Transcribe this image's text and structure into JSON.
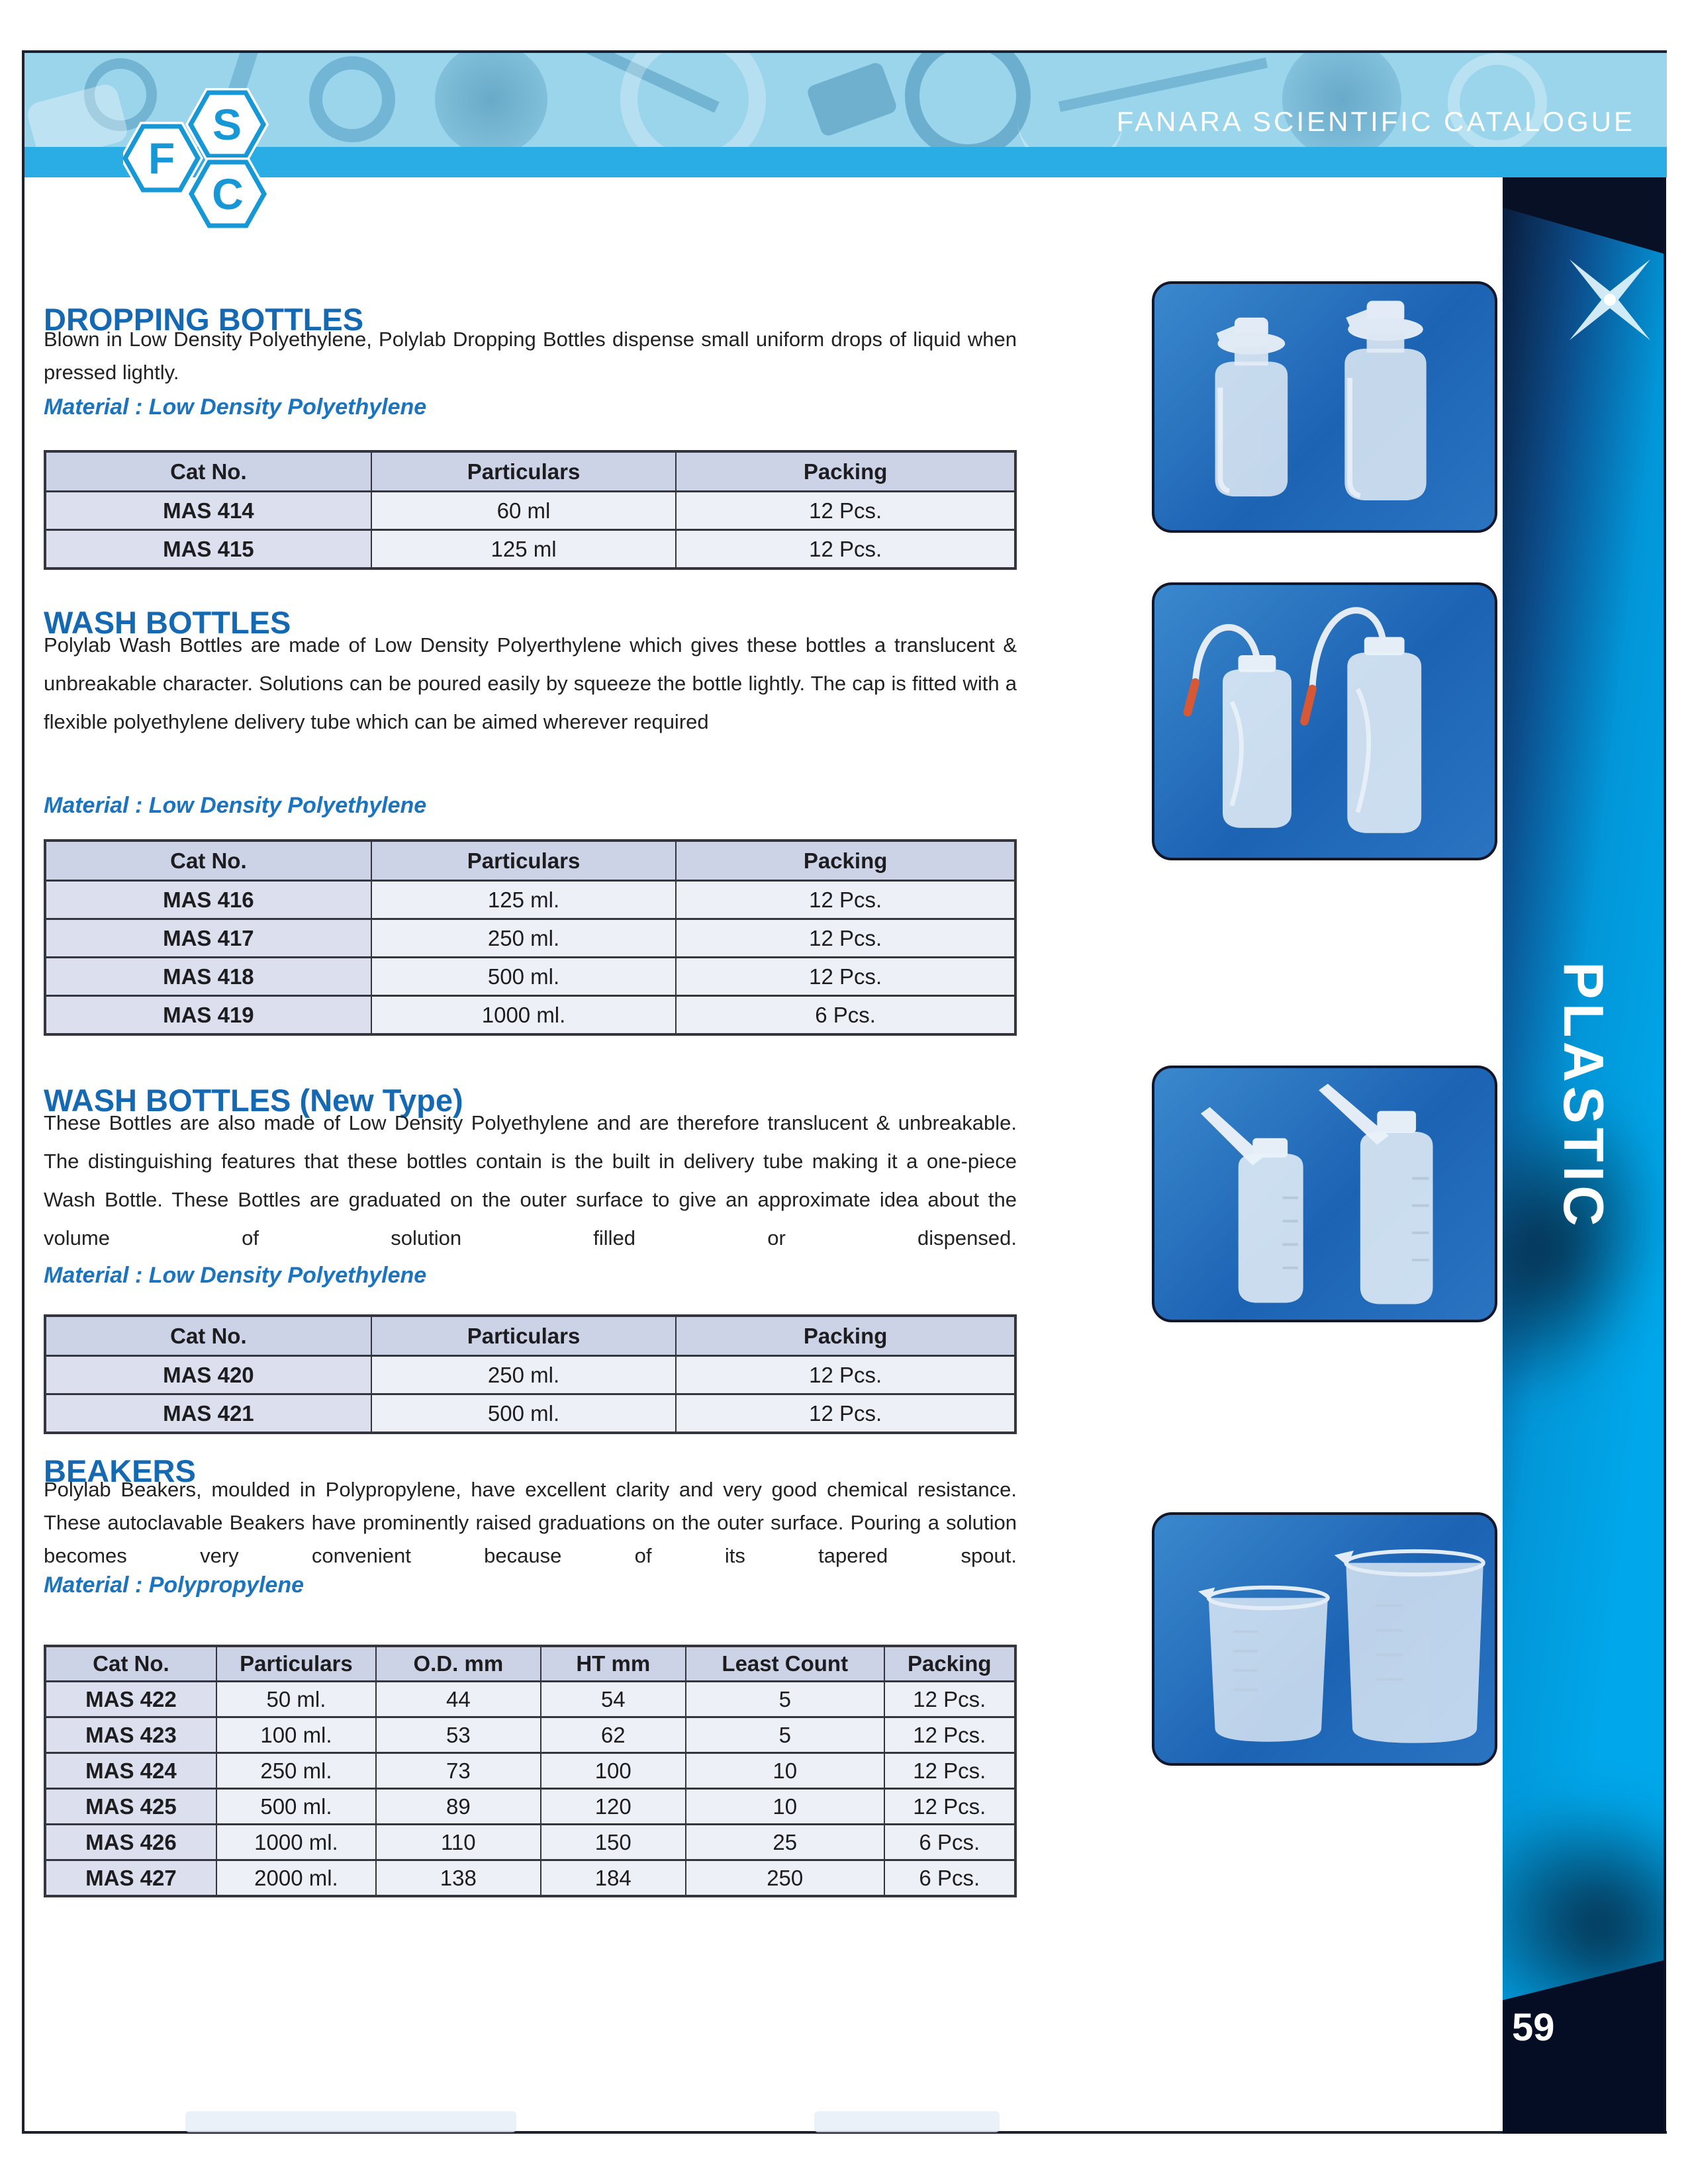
{
  "header": {
    "title": "FANARA SCIENTIFIC CATALOGUE"
  },
  "logo": {
    "letters": [
      "S",
      "F",
      "C"
    ]
  },
  "sidebar": {
    "label": "PLASTIC",
    "page_number": "59"
  },
  "colors": {
    "banner_light_blue": "#9ad5ec",
    "banner_stripe_blue": "#2aace4",
    "section_title_blue": "#1568b2",
    "material_blue": "#1a74c0",
    "table_header_bg": "#ccd3e6",
    "table_catno_bg": "#dbdfee",
    "table_cell_bg": "#eef0f8",
    "sidebar_navy": "#081026",
    "sidebar_blue": "#00a7ea",
    "photo_box_blue": "#1c63b4"
  },
  "images": [
    "dropping-bottles-photo",
    "wash-bottles-photo",
    "wash-bottles-new-type-photo",
    "beakers-photo"
  ],
  "sections": [
    {
      "title": "DROPPING BOTTLES",
      "description": "Blown in Low Density Polyethylene, Polylab Dropping Bottles dispense small uniform drops of liquid when pressed lightly.",
      "material": "Material : Low Density Polyethylene",
      "table": {
        "headers": [
          "Cat No.",
          "Particulars",
          "Packing"
        ],
        "rows": [
          [
            "MAS 414",
            "60 ml",
            "12 Pcs."
          ],
          [
            "MAS 415",
            "125 ml",
            "12 Pcs."
          ]
        ]
      }
    },
    {
      "title": "WASH BOTTLES",
      "description": "Polylab Wash Bottles are made of Low Density Polyerthylene which gives these bottles a translucent & unbreakable character. Solutions can be poured easily by squeeze the bottle lightly. The cap is fitted with a flexible polyethylene delivery tube which can be aimed wherever required",
      "material": "Material : Low Density Polyethylene",
      "table": {
        "headers": [
          "Cat No.",
          "Particulars",
          "Packing"
        ],
        "rows": [
          [
            "MAS 416",
            "125 ml.",
            "12 Pcs."
          ],
          [
            "MAS 417",
            "250 ml.",
            "12 Pcs."
          ],
          [
            "MAS 418",
            "500 ml.",
            "12 Pcs."
          ],
          [
            "MAS 419",
            "1000 ml.",
            "6 Pcs."
          ]
        ]
      }
    },
    {
      "title": "WASH BOTTLES (New Type)",
      "description": "These Bottles are also made of Low Density Polyethylene and are therefore translucent & unbreakable. The distinguishing features that these bottles contain is the built in delivery tube making it a one-piece Wash Bottle. These Bottles are graduated on the outer surface to give an approximate idea about the volume of solution filled or dispensed.",
      "material": "Material : Low Density Polyethylene",
      "table": {
        "headers": [
          "Cat No.",
          "Particulars",
          "Packing"
        ],
        "rows": [
          [
            "MAS 420",
            "250 ml.",
            "12 Pcs."
          ],
          [
            "MAS 421",
            "500 ml.",
            "12 Pcs."
          ]
        ]
      }
    },
    {
      "title": "BEAKERS",
      "description": "Polylab Beakers, moulded in Polypropylene, have excellent clarity and very good chemical resistance. These autoclavable Beakers have prominently raised graduations on the outer surface. Pouring a solution becomes very convenient because of its tapered spout.",
      "material": "Material : Polypropylene",
      "table": {
        "headers": [
          "Cat No.",
          "Particulars",
          "O.D. mm",
          "HT mm",
          "Least Count",
          "Packing"
        ],
        "rows": [
          [
            "MAS 422",
            "50 ml.",
            "44",
            "54",
            "5",
            "12 Pcs."
          ],
          [
            "MAS 423",
            "100 ml.",
            "53",
            "62",
            "5",
            "12 Pcs."
          ],
          [
            "MAS 424",
            "250 ml.",
            "73",
            "100",
            "10",
            "12 Pcs."
          ],
          [
            "MAS 425",
            "500 ml.",
            "89",
            "120",
            "10",
            "12 Pcs."
          ],
          [
            "MAS 426",
            "1000 ml.",
            "110",
            "150",
            "25",
            "6 Pcs."
          ],
          [
            "MAS 427",
            "2000 ml.",
            "138",
            "184",
            "250",
            "6 Pcs."
          ]
        ]
      }
    }
  ]
}
